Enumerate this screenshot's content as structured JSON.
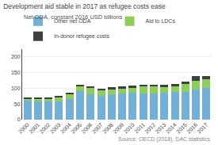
{
  "chart_data": {
    "type": "bar",
    "stacked": true,
    "title": "Development aid stable in 2017 as refugee costs ease",
    "subtitle": "Net ODA, constant 2016 USD billions",
    "annotations": [
      "Source: OECD (2018), DAC statistics"
    ],
    "categories": [
      "2000",
      "2001",
      "2002",
      "2003",
      "2004",
      "2005",
      "2006",
      "2007",
      "2008",
      "2009",
      "2010",
      "2011",
      "2012",
      "2013",
      "2014",
      "2015",
      "2016",
      "2017"
    ],
    "series": [
      {
        "name": "Other net ODA",
        "color": "#72b0d8",
        "values": [
          60,
          57,
          57,
          58,
          67,
          90,
          82,
          76,
          82,
          83,
          85,
          83,
          83,
          86,
          88,
          89,
          97,
          101
        ]
      },
      {
        "name": "Aid to LDCs",
        "color": "#8dce5a",
        "values": [
          7,
          9,
          10,
          13,
          15,
          17,
          20,
          18,
          16,
          17,
          18,
          22,
          22,
          20,
          20,
          24,
          28,
          27
        ]
      },
      {
        "name": "In-donor refugee costs",
        "color": "#404040",
        "values": [
          2,
          3,
          3,
          3,
          4,
          5,
          5,
          4,
          5,
          5,
          5,
          6,
          6,
          5,
          5,
          8,
          14,
          10
        ]
      }
    ],
    "ylim": [
      0,
      225
    ],
    "yticks": [
      0,
      50,
      100,
      150,
      200
    ],
    "grid": true,
    "legend": "top"
  }
}
